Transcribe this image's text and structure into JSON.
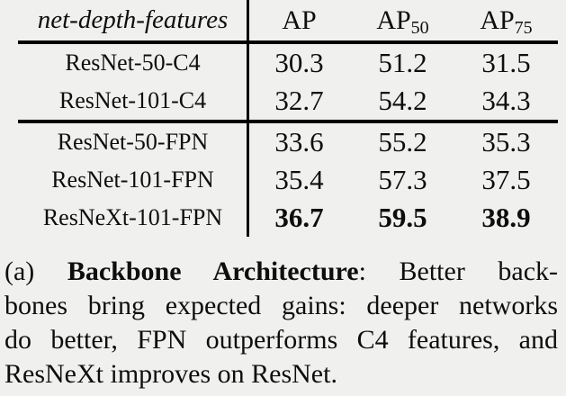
{
  "colors": {
    "background": "#f0f1ee",
    "text": "#0e0e0e",
    "rule": "#000000"
  },
  "table": {
    "header": {
      "feature_label": "net-depth-features",
      "columns": [
        {
          "label": "AP",
          "sub": ""
        },
        {
          "label": "AP",
          "sub": "50"
        },
        {
          "label": "AP",
          "sub": "75"
        }
      ]
    },
    "rows": [
      {
        "name": "ResNet-50-C4",
        "values": [
          "30.3",
          "51.2",
          "31.5"
        ],
        "bold": false
      },
      {
        "name": "ResNet-101-C4",
        "values": [
          "32.7",
          "54.2",
          "34.3"
        ],
        "bold": false
      },
      {
        "name": "ResNet-50-FPN",
        "values": [
          "33.6",
          "55.2",
          "35.3"
        ],
        "bold": false
      },
      {
        "name": "ResNet-101-FPN",
        "values": [
          "35.4",
          "57.3",
          "37.5"
        ],
        "bold": false
      },
      {
        "name": "ResNeXt-101-FPN",
        "values": [
          "36.7",
          "59.5",
          "38.9"
        ],
        "bold": true
      }
    ],
    "group_break_after_row": 2
  },
  "caption": {
    "line1": {
      "prefix": "(a) ",
      "bold": "Backbone Architecture",
      "rest": ": Better back-"
    },
    "line2": "bones bring expected gains: deeper networks",
    "line3": "do better, FPN outperforms C4 features, and",
    "line4": "ResNeXt improves on ResNet."
  }
}
